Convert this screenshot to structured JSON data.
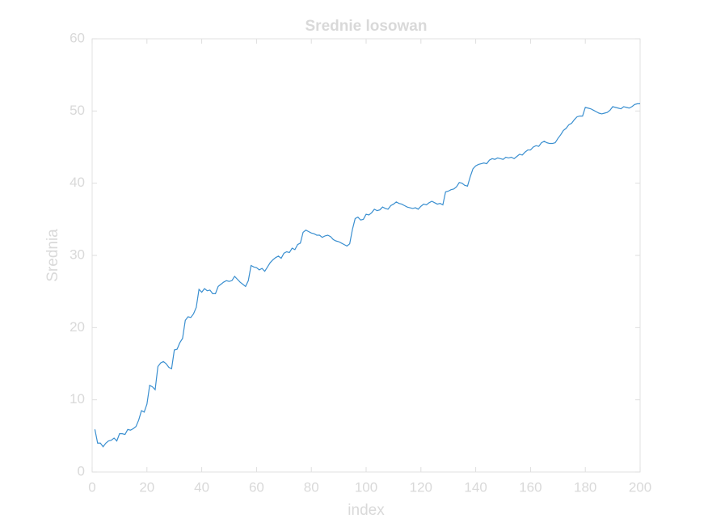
{
  "chart_data": {
    "type": "line",
    "title": "Srednie losowan",
    "xlabel": "index",
    "ylabel": "Srednia",
    "x": [
      1,
      2,
      3,
      4,
      5,
      6,
      7,
      8,
      9,
      10,
      11,
      12,
      13,
      14,
      15,
      16,
      17,
      18,
      19,
      20,
      21,
      22,
      23,
      24,
      25,
      26,
      27,
      28,
      29,
      30,
      31,
      32,
      33,
      34,
      35,
      36,
      37,
      38,
      39,
      40,
      41,
      42,
      43,
      44,
      45,
      46,
      47,
      48,
      49,
      50,
      51,
      52,
      53,
      54,
      55,
      56,
      57,
      58,
      59,
      60,
      61,
      62,
      63,
      64,
      65,
      66,
      67,
      68,
      69,
      70,
      71,
      72,
      73,
      74,
      75,
      76,
      77,
      78,
      79,
      80,
      81,
      82,
      83,
      84,
      85,
      86,
      87,
      88,
      89,
      90,
      91,
      92,
      93,
      94,
      95,
      96,
      97,
      98,
      99,
      100,
      101,
      102,
      103,
      104,
      105,
      106,
      107,
      108,
      109,
      110,
      111,
      112,
      113,
      114,
      115,
      116,
      117,
      118,
      119,
      120,
      121,
      122,
      123,
      124,
      125,
      126,
      127,
      128,
      129,
      130,
      131,
      132,
      133,
      134,
      135,
      136,
      137,
      138,
      139,
      140,
      141,
      142,
      143,
      144,
      145,
      146,
      147,
      148,
      149,
      150,
      151,
      152,
      153,
      154,
      155,
      156,
      157,
      158,
      159,
      160,
      161,
      162,
      163,
      164,
      165,
      166,
      167,
      168,
      169,
      170,
      171,
      172,
      173,
      174,
      175,
      176,
      177,
      178,
      179,
      180,
      181,
      182,
      183,
      184,
      185,
      186,
      187,
      188,
      189,
      190,
      191,
      192,
      193,
      194,
      195,
      196,
      197,
      198,
      199,
      200
    ],
    "series": [
      {
        "color": "#3a8fd0",
        "values": [
          5.9,
          4.0,
          4.0,
          3.5,
          4.0,
          4.3,
          4.4,
          4.7,
          4.3,
          5.3,
          5.3,
          5.2,
          5.9,
          5.8,
          6.0,
          6.3,
          7.2,
          8.5,
          8.3,
          9.4,
          12.0,
          11.8,
          11.4,
          14.6,
          15.1,
          15.3,
          15.0,
          14.5,
          14.3,
          16.9,
          17.0,
          17.9,
          18.5,
          21.0,
          21.5,
          21.4,
          21.9,
          22.8,
          25.3,
          24.9,
          25.4,
          25.1,
          25.2,
          24.7,
          24.7,
          25.7,
          26.0,
          26.3,
          26.5,
          26.4,
          26.5,
          27.1,
          26.7,
          26.3,
          26.0,
          25.7,
          26.5,
          28.6,
          28.4,
          28.3,
          28.0,
          28.2,
          27.8,
          28.4,
          29.0,
          29.4,
          29.7,
          29.9,
          29.6,
          30.3,
          30.5,
          30.4,
          31.0,
          30.8,
          31.5,
          31.7,
          33.2,
          33.5,
          33.3,
          33.1,
          33.0,
          32.8,
          32.8,
          32.5,
          32.7,
          32.8,
          32.6,
          32.2,
          32.0,
          31.9,
          31.7,
          31.5,
          31.3,
          31.6,
          33.6,
          35.1,
          35.3,
          34.9,
          35.0,
          35.7,
          35.6,
          35.9,
          36.4,
          36.2,
          36.3,
          36.7,
          36.5,
          36.4,
          36.9,
          37.1,
          37.4,
          37.2,
          37.1,
          36.9,
          36.7,
          36.6,
          36.5,
          36.6,
          36.4,
          36.8,
          37.1,
          37.0,
          37.3,
          37.5,
          37.3,
          37.1,
          37.2,
          37.0,
          38.8,
          38.9,
          39.1,
          39.2,
          39.5,
          40.1,
          40.0,
          39.7,
          39.6,
          40.9,
          42.0,
          42.4,
          42.6,
          42.7,
          42.8,
          42.7,
          43.2,
          43.4,
          43.3,
          43.5,
          43.4,
          43.3,
          43.6,
          43.5,
          43.6,
          43.4,
          43.7,
          44.0,
          43.9,
          44.3,
          44.6,
          44.6,
          45.0,
          45.2,
          45.1,
          45.6,
          45.8,
          45.6,
          45.5,
          45.5,
          45.6,
          46.2,
          46.7,
          47.3,
          47.6,
          48.1,
          48.3,
          48.8,
          49.2,
          49.3,
          49.3,
          50.5,
          50.4,
          50.3,
          50.1,
          49.9,
          49.7,
          49.6,
          49.7,
          49.8,
          50.1,
          50.6,
          50.5,
          50.4,
          50.3,
          50.6,
          50.5,
          50.4,
          50.6,
          50.9,
          51.0,
          51.0
        ]
      }
    ],
    "xlim": [
      0,
      200
    ],
    "xticks": [
      0,
      20,
      40,
      60,
      80,
      100,
      120,
      140,
      160,
      180,
      200
    ],
    "ylim": [
      0,
      60
    ],
    "yticks": [
      0,
      10,
      20,
      30,
      40,
      50,
      60
    ],
    "grid": false
  }
}
